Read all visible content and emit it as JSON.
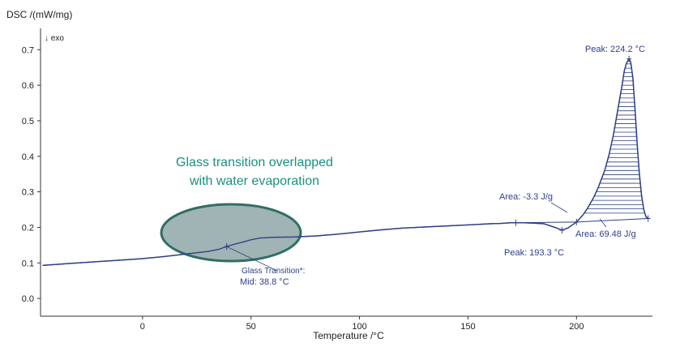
{
  "chart_data": {
    "type": "line",
    "ylabel": "DSC /(mW/mg)",
    "xlabel": "Temperature /°C",
    "exo_label": "↓ exo",
    "xlim": [
      -47,
      235
    ],
    "ylim": [
      -0.05,
      0.76
    ],
    "x_ticks": [
      0,
      50,
      100,
      150,
      200
    ],
    "y_ticks": [
      0.0,
      0.1,
      0.2,
      0.3,
      0.4,
      0.5,
      0.6,
      0.7
    ],
    "grid": false,
    "curve_color": "#2e3f86",
    "series": [
      {
        "x": [
          -46,
          -30,
          -10,
          0,
          10,
          20,
          30,
          35,
          38.8,
          42,
          46,
          50,
          54,
          60,
          70,
          80,
          90,
          100,
          110,
          120,
          130,
          140,
          150,
          160,
          165,
          170,
          175,
          180,
          185,
          190,
          193.3,
          196,
          200,
          203,
          205,
          208,
          210,
          213,
          215,
          217,
          219,
          221,
          222,
          223,
          224.2,
          225,
          226,
          227,
          228,
          229,
          230,
          231,
          232,
          233
        ],
        "y": [
          0.093,
          0.1,
          0.108,
          0.112,
          0.118,
          0.125,
          0.132,
          0.138,
          0.146,
          0.152,
          0.158,
          0.165,
          0.17,
          0.172,
          0.173,
          0.176,
          0.181,
          0.187,
          0.193,
          0.198,
          0.201,
          0.204,
          0.207,
          0.21,
          0.211,
          0.213,
          0.213,
          0.212,
          0.21,
          0.2,
          0.192,
          0.198,
          0.215,
          0.235,
          0.253,
          0.285,
          0.312,
          0.36,
          0.405,
          0.46,
          0.53,
          0.6,
          0.64,
          0.662,
          0.674,
          0.665,
          0.62,
          0.53,
          0.43,
          0.35,
          0.29,
          0.25,
          0.23,
          0.225
        ]
      }
    ],
    "annotations": {
      "peak_top": "Peak: 224.2 °C",
      "area_small": "Area: -3.3 J/g",
      "peak_small": "Peak: 193.3 °C",
      "area_large": "Area: 69.48 J/g",
      "glass_transition": "Glass Transition*:",
      "glass_mid": "Mid: 38.8 °C",
      "callout_line1": "Glass transition overlapped",
      "callout_line2": "with water evaporation"
    },
    "colors": {
      "curve": "#2e3f86",
      "ellipse_fill": "#8fa6a8",
      "ellipse_stroke": "#2f6e62",
      "callout_text": "#1b8f80"
    }
  }
}
